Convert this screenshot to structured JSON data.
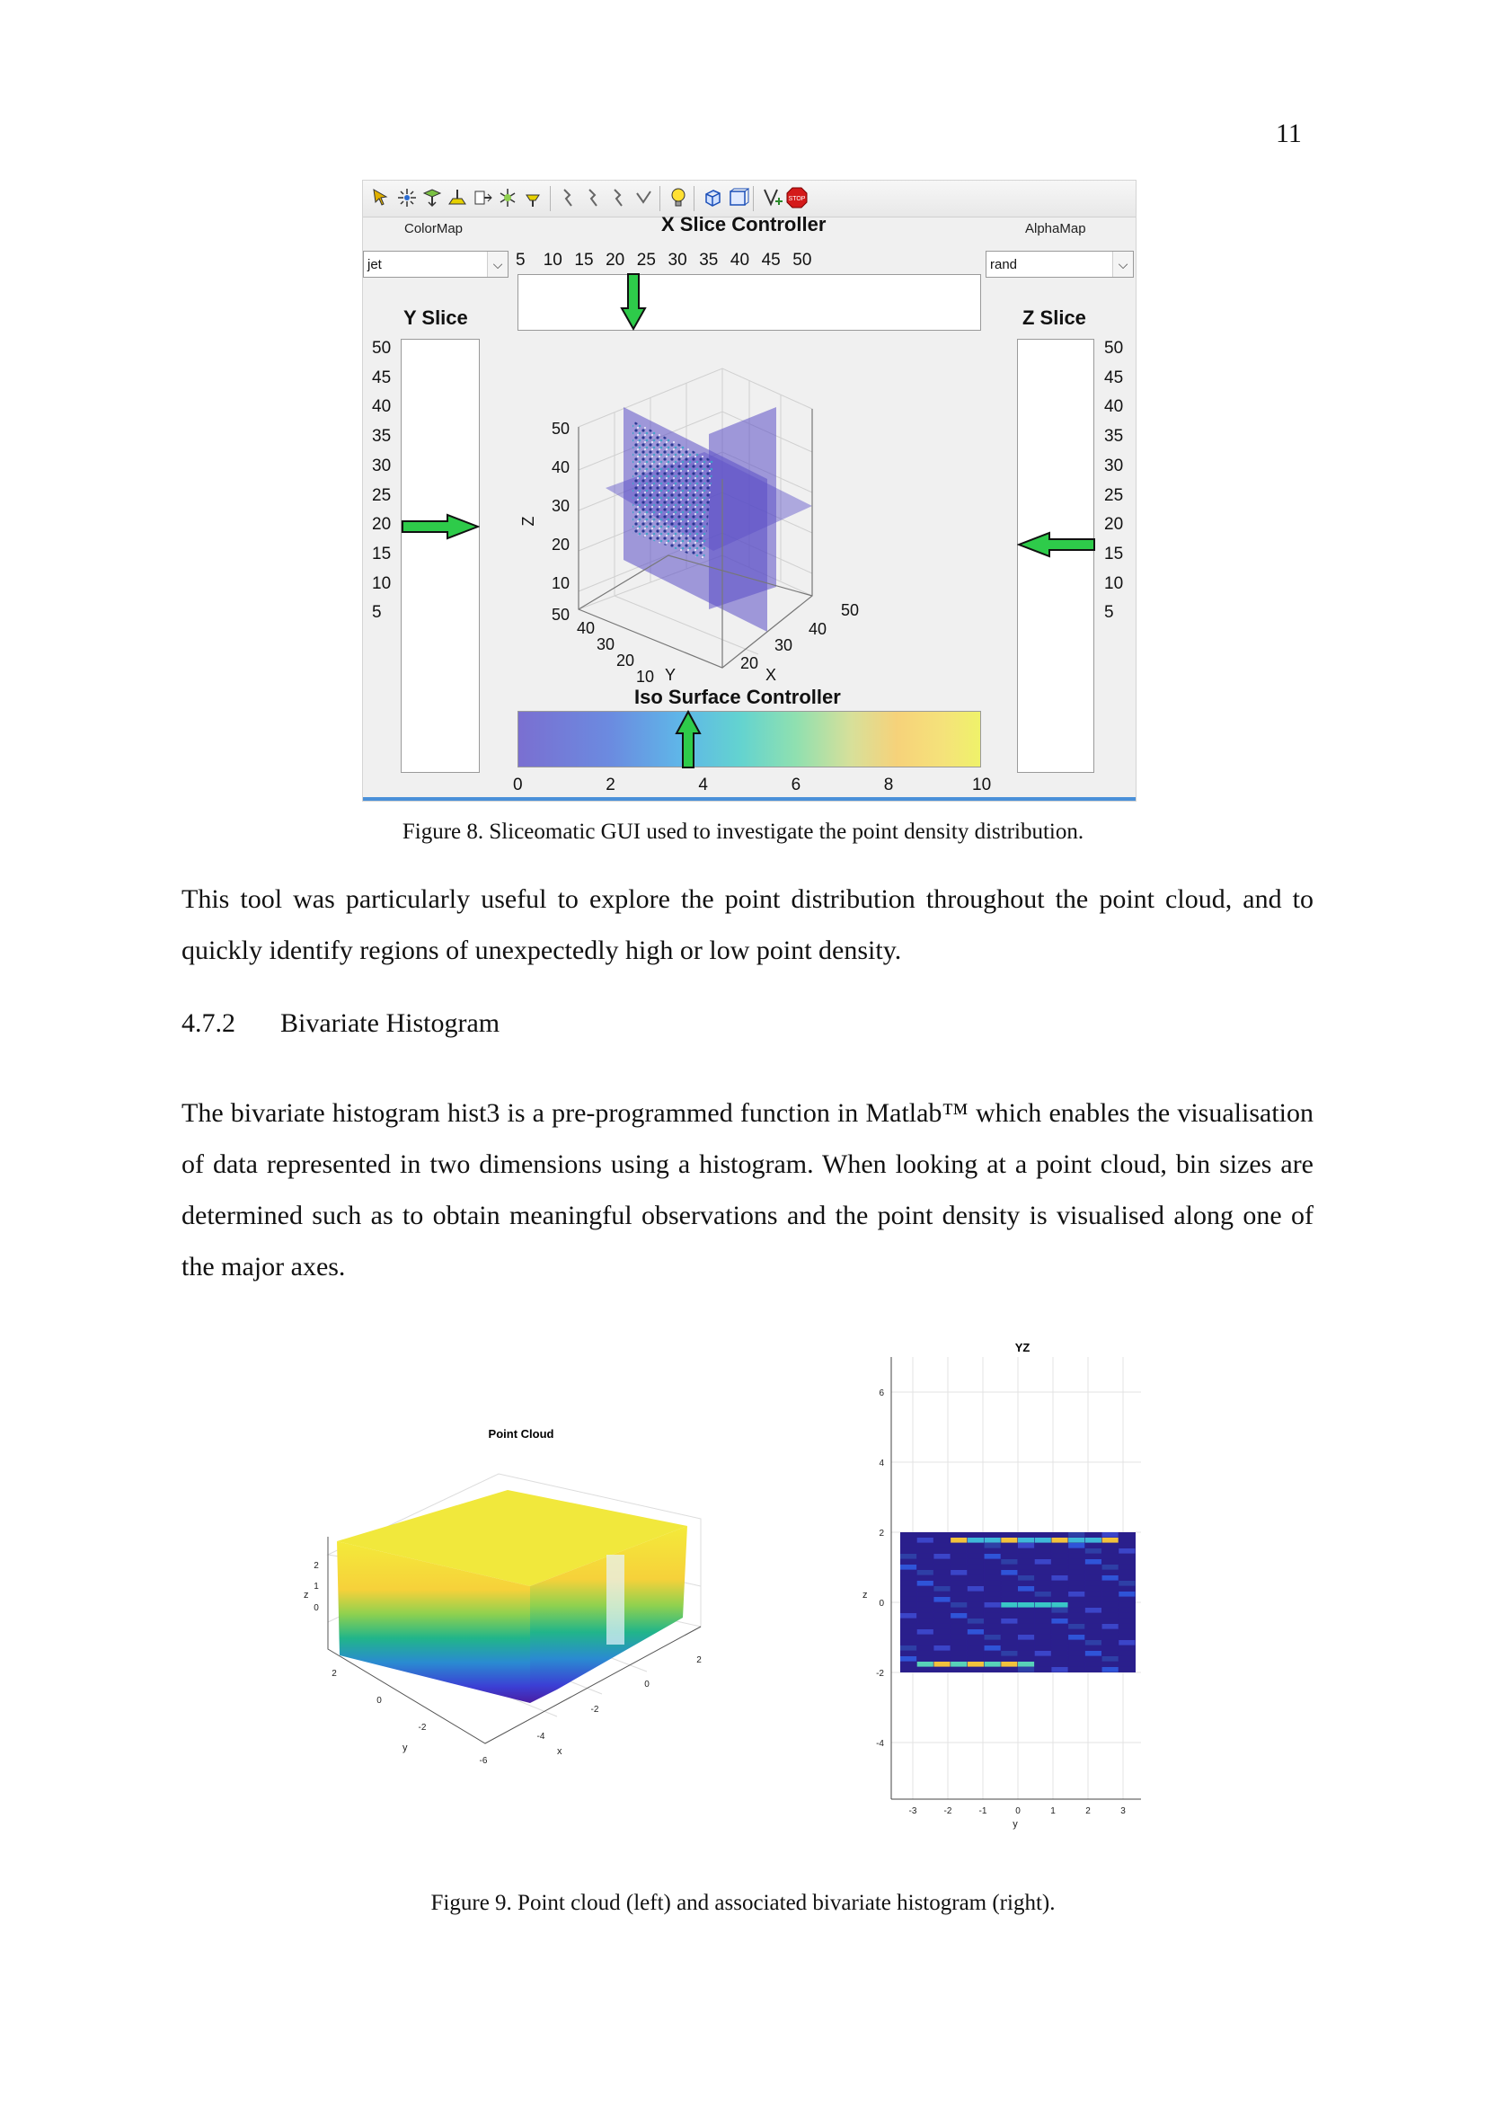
{
  "page_number": "11",
  "figure8": {
    "colormap_label": "ColorMap",
    "colormap_value": "jet",
    "alphamap_label": "AlphaMap",
    "alphamap_value": "rand",
    "x_slice_title": "X Slice Controller",
    "x_ticks": [
      "5",
      "10",
      "15",
      "20",
      "25",
      "30",
      "35",
      "40",
      "45",
      "50"
    ],
    "y_slice_title": "Y Slice",
    "z_slice_title": "Z Slice",
    "vertical_ticks": [
      "50",
      "45",
      "40",
      "35",
      "30",
      "25",
      "20",
      "15",
      "10",
      "5"
    ],
    "iso_title": "Iso Surface Controller",
    "iso_ticks": [
      "0",
      "2",
      "4",
      "6",
      "8",
      "10"
    ],
    "plot3d": {
      "z_label": "Z",
      "y_label": "Y",
      "x_label": "X",
      "z_ticks": [
        "50",
        "40",
        "30",
        "20",
        "10"
      ],
      "y_ticks": [
        "50",
        "40",
        "30",
        "20",
        "10"
      ],
      "x_ticks": [
        "20",
        "30",
        "40",
        "50"
      ]
    },
    "toolbar_icons": [
      "cursor-icon",
      "sparkle-icon",
      "slice-x-icon",
      "slice-y-icon",
      "slice-z-icon",
      "iso-icon",
      "iso-cap-icon",
      "arrow-x-icon",
      "arrow-y-icon",
      "arrow-z-icon",
      "arrow-check-icon",
      "light-bulb-icon",
      "cube-icon",
      "box-icon",
      "insert-icon",
      "stop-icon"
    ],
    "stop_text": "STOP",
    "caption": "Figure 8. Sliceomatic GUI used to investigate the point density distribution."
  },
  "para1": "This tool was particularly useful to explore the point distribution throughout the point cloud, and to quickly identify regions of unexpectedly high or low point density.",
  "heading": {
    "number": "4.7.2",
    "title": "Bivariate Histogram"
  },
  "para2": "The bivariate histogram hist3 is a pre-programmed function in Matlab™ which enables the visualisation of data represented in two dimensions using a histogram. When looking at a point cloud, bin sizes are determined such as to obtain meaningful observations and the point density is visualised along one of the major axes.",
  "figure9": {
    "left": {
      "title": "Point Cloud",
      "z_label": "z",
      "y_label": "y",
      "x_label": "x",
      "z_ticks": [
        "2",
        "1",
        "0"
      ],
      "y_ticks": [
        "2",
        "0",
        "-2"
      ],
      "x_ticks": [
        "-6",
        "-4",
        "-2",
        "0",
        "2"
      ]
    },
    "right": {
      "title": "YZ",
      "y_axis_label": "z",
      "x_axis_label": "y",
      "z_ticks": [
        "6",
        "4",
        "2",
        "0",
        "-2",
        "-4"
      ],
      "y_ticks": [
        "-3",
        "-2",
        "-1",
        "0",
        "1",
        "2",
        "3"
      ]
    },
    "caption": "Figure 9. Point cloud (left) and associated bivariate histogram (right)."
  }
}
